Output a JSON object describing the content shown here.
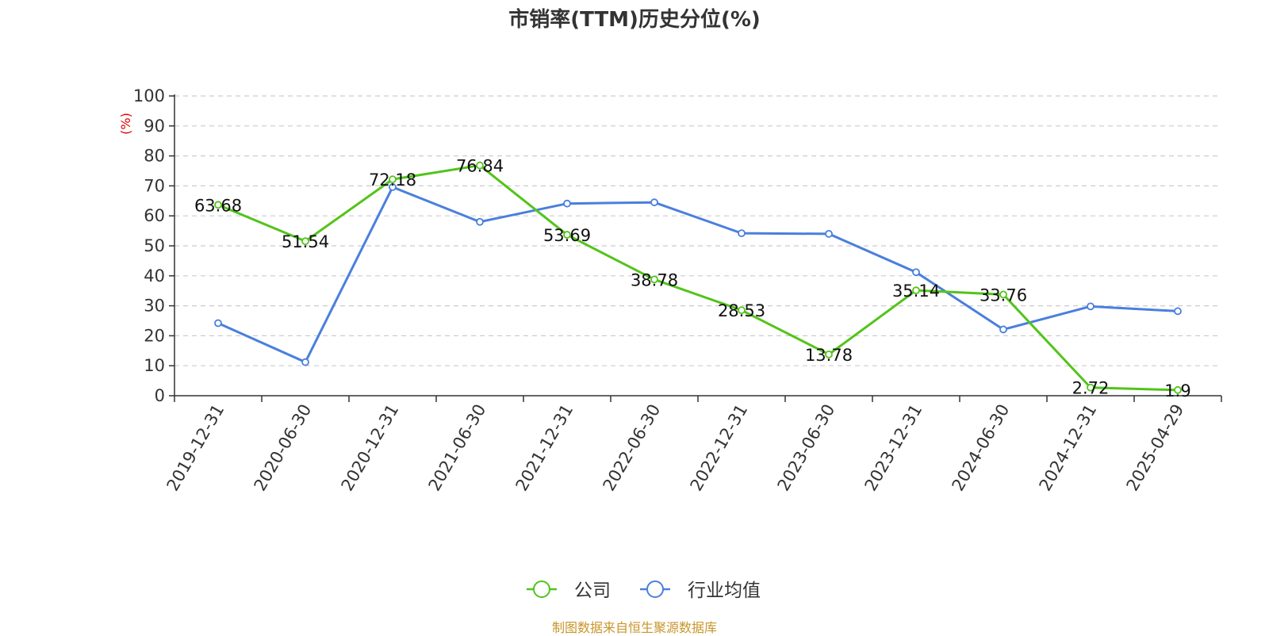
{
  "colors": {
    "company": "#52c41a",
    "industry": "#4a7fdd",
    "grid": "#cccccc",
    "axis": "#333333",
    "unit": "#e00000",
    "source": "#c8952a"
  },
  "chart_data": {
    "type": "line",
    "title": "市销率(TTM)历史分位(%)",
    "ylabel": "(%)",
    "ylim": [
      0,
      100
    ],
    "yticks": [
      0,
      10,
      20,
      30,
      40,
      50,
      60,
      70,
      80,
      90,
      100
    ],
    "grid": true,
    "legend_position": "bottom-center",
    "categories": [
      "2019-12-31",
      "2020-06-30",
      "2020-12-31",
      "2021-06-30",
      "2021-12-31",
      "2022-06-30",
      "2022-12-31",
      "2023-06-30",
      "2023-12-31",
      "2024-06-30",
      "2024-12-31",
      "2025-04-29"
    ],
    "series": [
      {
        "name": "公司",
        "values": [
          63.68,
          51.54,
          72.18,
          76.84,
          53.69,
          38.78,
          28.53,
          13.78,
          35.14,
          33.76,
          2.72,
          1.9
        ],
        "data_labels": [
          "63.68",
          "51.54",
          "72.18",
          "76.84",
          "53.69",
          "38.78",
          "28.53",
          "13.78",
          "35.14",
          "33.76",
          "2.72",
          "1.9"
        ]
      },
      {
        "name": "行业均值",
        "values": [
          24.2,
          11.2,
          69.6,
          58.0,
          64.1,
          64.5,
          54.2,
          54.0,
          41.2,
          22.1,
          29.8,
          28.2
        ]
      }
    ]
  },
  "source_text": "制图数据来自恒生聚源数据库"
}
